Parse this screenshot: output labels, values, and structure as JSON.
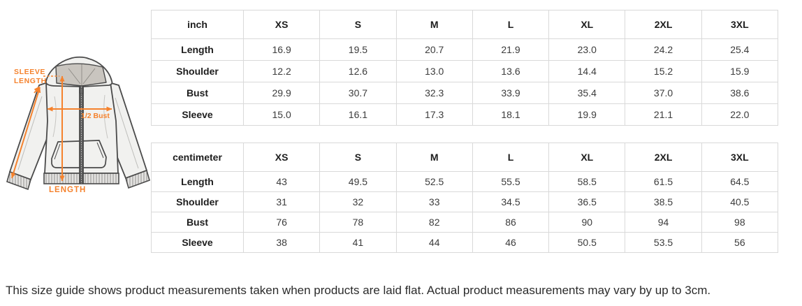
{
  "diagram": {
    "accent_color": "#f5822d",
    "labels": {
      "sleeve_length_line1": "SLEEVE",
      "sleeve_length_line2": "LENGTH",
      "half_bust": "1/2 Bust",
      "length": "LENGTH"
    }
  },
  "tables": [
    {
      "unit": "inch",
      "columns": [
        "XS",
        "S",
        "M",
        "L",
        "XL",
        "2XL",
        "3XL"
      ],
      "rows": [
        {
          "label": "Length",
          "values": [
            "16.9",
            "19.5",
            "20.7",
            "21.9",
            "23.0",
            "24.2",
            "25.4"
          ]
        },
        {
          "label": "Shoulder",
          "values": [
            "12.2",
            "12.6",
            "13.0",
            "13.6",
            "14.4",
            "15.2",
            "15.9"
          ]
        },
        {
          "label": "Bust",
          "values": [
            "29.9",
            "30.7",
            "32.3",
            "33.9",
            "35.4",
            "37.0",
            "38.6"
          ]
        },
        {
          "label": "Sleeve",
          "values": [
            "15.0",
            "16.1",
            "17.3",
            "18.1",
            "19.9",
            "21.1",
            "22.0"
          ]
        }
      ]
    },
    {
      "unit": "centimeter",
      "columns": [
        "XS",
        "S",
        "M",
        "L",
        "XL",
        "2XL",
        "3XL"
      ],
      "rows": [
        {
          "label": "Length",
          "values": [
            "43",
            "49.5",
            "52.5",
            "55.5",
            "58.5",
            "61.5",
            "64.5"
          ]
        },
        {
          "label": "Shoulder",
          "values": [
            "31",
            "32",
            "33",
            "34.5",
            "36.5",
            "38.5",
            "40.5"
          ]
        },
        {
          "label": "Bust",
          "values": [
            "76",
            "78",
            "82",
            "86",
            "90",
            "94",
            "98"
          ]
        },
        {
          "label": "Sleeve",
          "values": [
            "38",
            "41",
            "44",
            "46",
            "50.5",
            "53.5",
            "56"
          ]
        }
      ]
    }
  ],
  "footer": {
    "note": "This size guide shows product measurements taken when products are laid flat. Actual product measurements may vary by up to 3cm."
  }
}
